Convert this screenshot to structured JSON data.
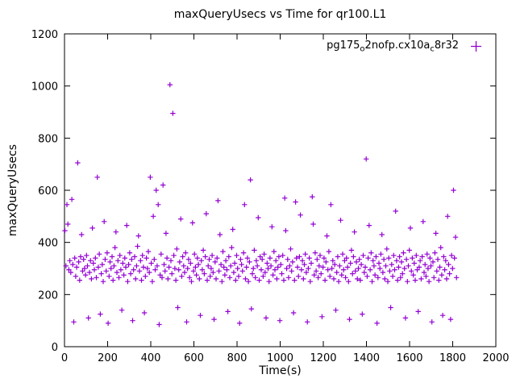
{
  "title": "maxQueryUsecs vs Time for qr100.L1",
  "xlabel": "Time(s)",
  "ylabel": "maxQueryUsecs",
  "legend": {
    "parts": [
      {
        "text": "pg175"
      },
      {
        "text": "o",
        "sub": true
      },
      {
        "text": "2nofp.cx10a"
      },
      {
        "text": "c",
        "sub": true
      },
      {
        "text": "8r32"
      }
    ]
  },
  "chart_data": {
    "type": "scatter",
    "series_name": "pg175 o2nofp.cx10a c8r32",
    "marker": "plus",
    "color": "#9400d3",
    "xlim": [
      0,
      2000
    ],
    "ylim": [
      0,
      1200
    ],
    "xtick_step": 200,
    "ytick_step": 200,
    "x_start": 2,
    "x_step": 4.55,
    "y": [
      445,
      310,
      545,
      470,
      295,
      330,
      285,
      565,
      315,
      95,
      340,
      270,
      305,
      705,
      325,
      255,
      345,
      430,
      290,
      335,
      300,
      275,
      350,
      310,
      110,
      285,
      330,
      260,
      455,
      320,
      295,
      340,
      265,
      650,
      305,
      355,
      125,
      280,
      315,
      250,
      480,
      335,
      290,
      360,
      90,
      270,
      325,
      300,
      345,
      255,
      310,
      380,
      440,
      285,
      330,
      265,
      350,
      295,
      140,
      320,
      275,
      340,
      305,
      465,
      250,
      315,
      360,
      280,
      335,
      100,
      295,
      345,
      260,
      310,
      385,
      425,
      290,
      330,
      255,
      350,
      305,
      130,
      270,
      340,
      300,
      365,
      285,
      650,
      320,
      250,
      500,
      335,
      295,
      600,
      310,
      545,
      85,
      275,
      355,
      265,
      620,
      315,
      290,
      435,
      340,
      260,
      305,
      1005,
      330,
      280,
      895,
      350,
      300,
      255,
      375,
      150,
      295,
      325,
      490,
      270,
      345,
      310,
      285,
      360,
      95,
      300,
      335,
      265,
      320,
      250,
      475,
      290,
      355,
      305,
      275,
      340,
      315,
      260,
      120,
      330,
      295,
      370,
      280,
      345,
      510,
      255,
      310,
      335,
      270,
      300,
      350,
      285,
      105,
      325,
      260,
      340,
      560,
      290,
      430,
      315,
      250,
      365,
      305,
      275,
      330,
      295,
      135,
      345,
      265,
      310,
      380,
      450,
      285,
      320,
      255,
      350,
      300,
      270,
      90,
      335,
      315,
      290,
      360,
      545,
      260,
      305,
      340,
      250,
      325,
      640,
      145,
      280,
      300,
      370,
      265,
      330,
      310,
      495,
      255,
      345,
      295,
      335,
      270,
      355,
      285,
      110,
      320,
      300,
      250,
      340,
      310,
      460,
      275,
      365,
      295,
      330,
      260,
      305,
      345,
      100,
      315,
      280,
      350,
      255,
      570,
      445,
      300,
      335,
      265,
      310,
      375,
      290,
      325,
      130,
      255,
      555,
      340,
      305,
      270,
      345,
      505,
      295,
      330,
      260,
      315,
      355,
      285,
      95,
      300,
      340,
      250,
      320,
      575,
      470,
      275,
      360,
      290,
      335,
      265,
      310,
      350,
      280,
      115,
      305,
      340,
      255,
      325,
      425,
      295,
      365,
      270,
      545,
      300,
      330,
      260,
      315,
      140,
      285,
      345,
      250,
      310,
      485,
      275,
      355,
      295,
      330,
      265,
      340,
      305,
      250,
      105,
      320,
      370,
      280,
      345,
      440,
      290,
      325,
      260,
      300,
      335,
      255,
      315,
      125,
      350,
      285,
      305,
      720,
      270,
      340,
      465,
      295,
      360,
      250,
      330,
      310,
      275,
      345,
      90,
      265,
      320,
      300,
      355,
      430,
      285,
      335,
      260,
      310,
      375,
      250,
      340,
      290,
      150,
      315,
      270,
      350,
      295,
      520,
      330,
      255,
      305,
      345,
      265,
      325,
      280,
      360,
      300,
      110,
      335,
      250,
      310,
      370,
      455,
      290,
      340,
      275,
      320,
      255,
      350,
      295,
      135,
      305,
      330,
      260,
      345,
      480,
      285,
      315,
      270,
      355,
      300,
      250,
      340,
      310,
      95,
      325,
      265,
      360,
      435,
      290,
      335,
      255,
      305,
      380,
      275,
      120,
      345,
      295,
      330,
      260,
      500,
      315,
      280,
      105,
      350,
      300,
      600,
      340,
      420,
      265
    ]
  }
}
